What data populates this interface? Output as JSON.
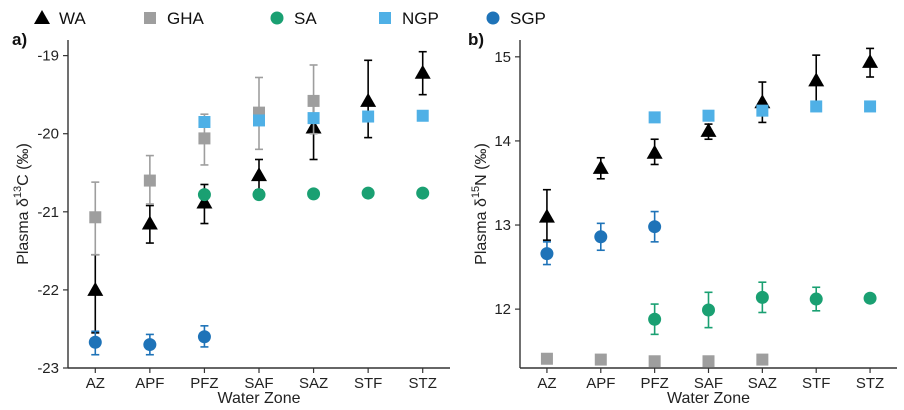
{
  "legend": [
    {
      "label": "WA",
      "marker": "triangle",
      "color": "#000000"
    },
    {
      "label": "GHA",
      "marker": "square",
      "color": "#9e9e9e"
    },
    {
      "label": "SA",
      "marker": "circle",
      "color": "#1aa072"
    },
    {
      "label": "NGP",
      "marker": "square",
      "color": "#4fb0e6"
    },
    {
      "label": "SGP",
      "marker": "circle",
      "color": "#1e73b8"
    }
  ],
  "chart_data": [
    {
      "type": "scatter",
      "panel_label": "a)",
      "xlabel": "Water Zone",
      "ylabel_prefix": "Plasma δ",
      "ylabel_sup": "13",
      "ylabel_suffix": "C (‰)",
      "categories": [
        "AZ",
        "APF",
        "PFZ",
        "SAF",
        "SAZ",
        "STF",
        "STZ"
      ],
      "ylim": [
        -23,
        -18.8
      ],
      "yticks": [
        -23,
        -22,
        -21,
        -20,
        -19
      ],
      "series": [
        {
          "name": "WA",
          "marker": "triangle",
          "color": "#000000",
          "errcolor": "#000000",
          "points": [
            {
              "x": "AZ",
              "y": -22.0,
              "lo": -22.55,
              "hi": -21.55
            },
            {
              "x": "APF",
              "y": -21.15,
              "lo": -21.4,
              "hi": -20.92
            },
            {
              "x": "PFZ",
              "y": -20.88,
              "lo": -21.15,
              "hi": -20.65
            },
            {
              "x": "SAF",
              "y": -20.53,
              "lo": -20.72,
              "hi": -20.33
            },
            {
              "x": "SAZ",
              "y": -19.92,
              "lo": -20.33,
              "hi": -19.62
            },
            {
              "x": "STF",
              "y": -19.58,
              "lo": -20.05,
              "hi": -19.06
            },
            {
              "x": "STZ",
              "y": -19.22,
              "lo": -19.5,
              "hi": -18.95
            }
          ]
        },
        {
          "name": "GHA",
          "marker": "square",
          "color": "#9e9e9e",
          "errcolor": "#9e9e9e",
          "points": [
            {
              "x": "AZ",
              "y": -21.07,
              "lo": -21.55,
              "hi": -20.62
            },
            {
              "x": "APF",
              "y": -20.6,
              "lo": -20.9,
              "hi": -20.28
            },
            {
              "x": "PFZ",
              "y": -20.06,
              "lo": -20.4,
              "hi": -19.75
            },
            {
              "x": "SAF",
              "y": -19.73,
              "lo": -20.2,
              "hi": -19.28
            },
            {
              "x": "SAZ",
              "y": -19.58,
              "lo": -20.0,
              "hi": -19.12
            }
          ]
        },
        {
          "name": "SA",
          "marker": "circle",
          "color": "#1aa072",
          "points": [
            {
              "x": "PFZ",
              "y": -20.78
            },
            {
              "x": "SAF",
              "y": -20.78
            },
            {
              "x": "SAZ",
              "y": -20.77
            },
            {
              "x": "STF",
              "y": -20.76
            },
            {
              "x": "STZ",
              "y": -20.76
            }
          ]
        },
        {
          "name": "NGP",
          "marker": "square",
          "color": "#4fb0e6",
          "points": [
            {
              "x": "PFZ",
              "y": -19.85
            },
            {
              "x": "SAF",
              "y": -19.83
            },
            {
              "x": "SAZ",
              "y": -19.8
            },
            {
              "x": "STF",
              "y": -19.78
            },
            {
              "x": "STZ",
              "y": -19.77
            }
          ]
        },
        {
          "name": "SGP",
          "marker": "circle",
          "color": "#1e73b8",
          "errcolor": "#1e73b8",
          "points": [
            {
              "x": "AZ",
              "y": -22.67,
              "lo": -22.83,
              "hi": -22.53
            },
            {
              "x": "APF",
              "y": -22.7,
              "lo": -22.83,
              "hi": -22.57
            },
            {
              "x": "PFZ",
              "y": -22.6,
              "lo": -22.73,
              "hi": -22.46
            }
          ]
        }
      ]
    },
    {
      "type": "scatter",
      "panel_label": "b)",
      "xlabel": "Water Zone",
      "ylabel_prefix": "Plasma δ",
      "ylabel_sup": "15",
      "ylabel_suffix": "N (‰)",
      "categories": [
        "AZ",
        "APF",
        "PFZ",
        "SAF",
        "SAZ",
        "STF",
        "STZ"
      ],
      "ylim": [
        11.3,
        15.2
      ],
      "yticks": [
        12,
        13,
        14,
        15
      ],
      "series": [
        {
          "name": "WA",
          "marker": "triangle",
          "color": "#000000",
          "errcolor": "#000000",
          "points": [
            {
              "x": "AZ",
              "y": 13.1,
              "lo": 12.82,
              "hi": 13.42
            },
            {
              "x": "APF",
              "y": 13.68,
              "lo": 13.55,
              "hi": 13.8
            },
            {
              "x": "PFZ",
              "y": 13.86,
              "lo": 13.72,
              "hi": 14.02
            },
            {
              "x": "SAF",
              "y": 14.12,
              "lo": 14.02,
              "hi": 14.2
            },
            {
              "x": "SAZ",
              "y": 14.46,
              "lo": 14.22,
              "hi": 14.7
            },
            {
              "x": "STF",
              "y": 14.72,
              "lo": 14.42,
              "hi": 15.02
            },
            {
              "x": "STZ",
              "y": 14.94,
              "lo": 14.76,
              "hi": 15.1
            }
          ]
        },
        {
          "name": "GHA",
          "marker": "square",
          "color": "#9e9e9e",
          "points": [
            {
              "x": "AZ",
              "y": 11.41
            },
            {
              "x": "APF",
              "y": 11.4
            },
            {
              "x": "PFZ",
              "y": 11.38
            },
            {
              "x": "SAF",
              "y": 11.38
            },
            {
              "x": "SAZ",
              "y": 11.4
            }
          ]
        },
        {
          "name": "SA",
          "marker": "circle",
          "color": "#1aa072",
          "errcolor": "#1aa072",
          "points": [
            {
              "x": "PFZ",
              "y": 11.88,
              "lo": 11.7,
              "hi": 12.06
            },
            {
              "x": "SAF",
              "y": 11.99,
              "lo": 11.78,
              "hi": 12.2
            },
            {
              "x": "SAZ",
              "y": 12.14,
              "lo": 11.96,
              "hi": 12.32
            },
            {
              "x": "STF",
              "y": 12.12,
              "lo": 11.98,
              "hi": 12.26
            },
            {
              "x": "STZ",
              "y": 12.13
            }
          ]
        },
        {
          "name": "NGP",
          "marker": "square",
          "color": "#4fb0e6",
          "points": [
            {
              "x": "PFZ",
              "y": 14.28
            },
            {
              "x": "SAF",
              "y": 14.3
            },
            {
              "x": "SAZ",
              "y": 14.36
            },
            {
              "x": "STF",
              "y": 14.41
            },
            {
              "x": "STZ",
              "y": 14.41
            }
          ]
        },
        {
          "name": "SGP",
          "marker": "circle",
          "color": "#1e73b8",
          "errcolor": "#1e73b8",
          "points": [
            {
              "x": "AZ",
              "y": 12.66,
              "lo": 12.53,
              "hi": 12.8
            },
            {
              "x": "APF",
              "y": 12.86,
              "lo": 12.7,
              "hi": 13.02
            },
            {
              "x": "PFZ",
              "y": 12.98,
              "lo": 12.8,
              "hi": 13.16
            }
          ]
        }
      ]
    }
  ]
}
